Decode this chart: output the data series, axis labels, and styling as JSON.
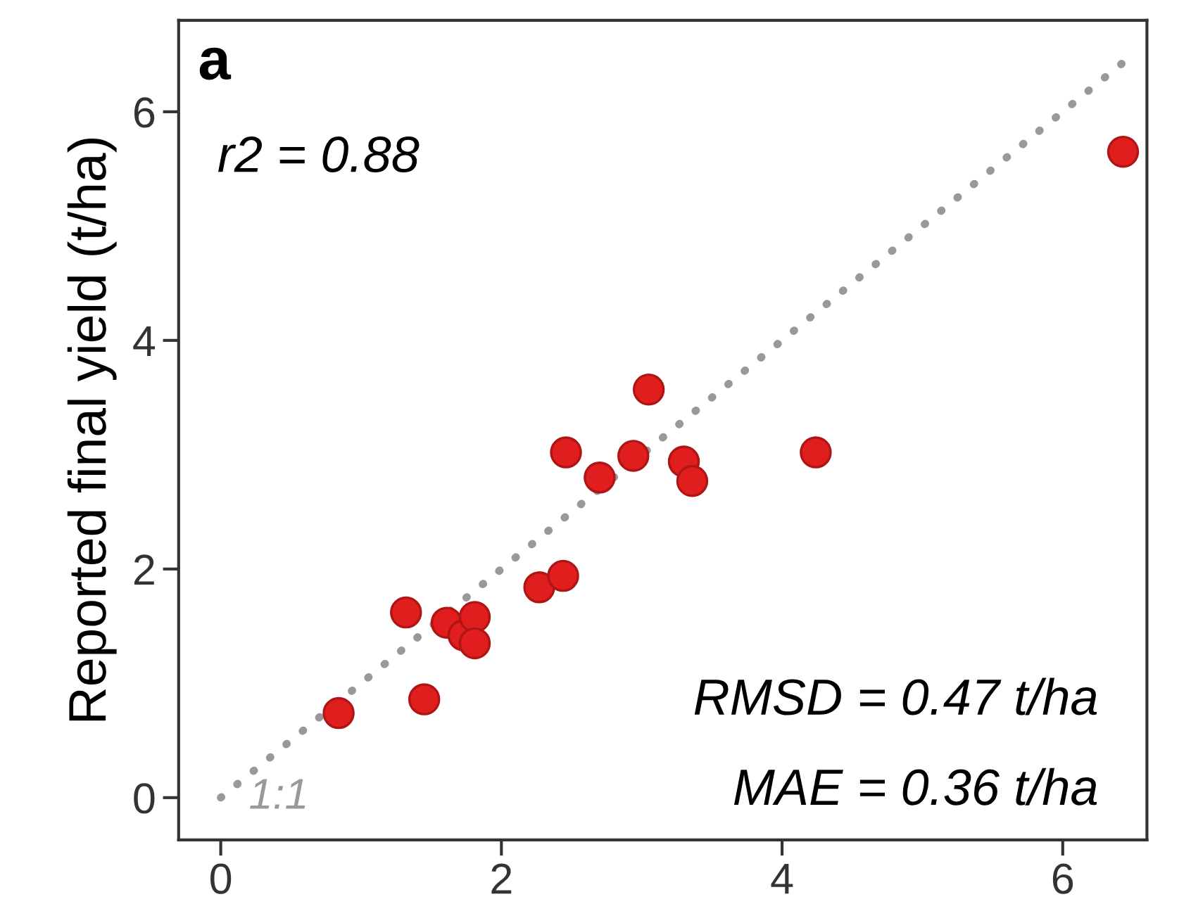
{
  "chart_data": {
    "type": "scatter",
    "title": "a",
    "ylabel": "Reported final yield (t/ha)",
    "annotations": [
      "r2 = 0.88",
      "RMSD = 0.47 t/ha",
      "MAE = 0.36 t/ha"
    ],
    "xlim": [
      -0.3,
      6.6
    ],
    "ylim": [
      -0.37,
      6.8
    ],
    "xticks": [
      0,
      2,
      4,
      6
    ],
    "yticks": [
      0,
      2,
      4,
      6
    ],
    "grid": false,
    "marker": "circle",
    "series": [
      {
        "type": "line",
        "name": "1:1",
        "color": "#999999",
        "line_style": "dotted",
        "marker": "none",
        "x": [
          0,
          6.5
        ],
        "values": [
          0,
          6.5
        ]
      },
      {
        "color": "#e01e1e",
        "x": [
          0.84,
          1.32,
          1.45,
          1.61,
          1.73,
          1.81,
          1.81,
          2.27,
          2.44,
          2.46,
          2.7,
          2.94,
          3.05,
          3.3,
          3.36,
          4.24,
          6.43
        ],
        "values": [
          0.74,
          1.62,
          0.86,
          1.53,
          1.42,
          1.58,
          1.35,
          1.84,
          1.94,
          3.02,
          2.8,
          2.99,
          3.57,
          2.94,
          2.77,
          3.02,
          5.65
        ]
      }
    ]
  }
}
